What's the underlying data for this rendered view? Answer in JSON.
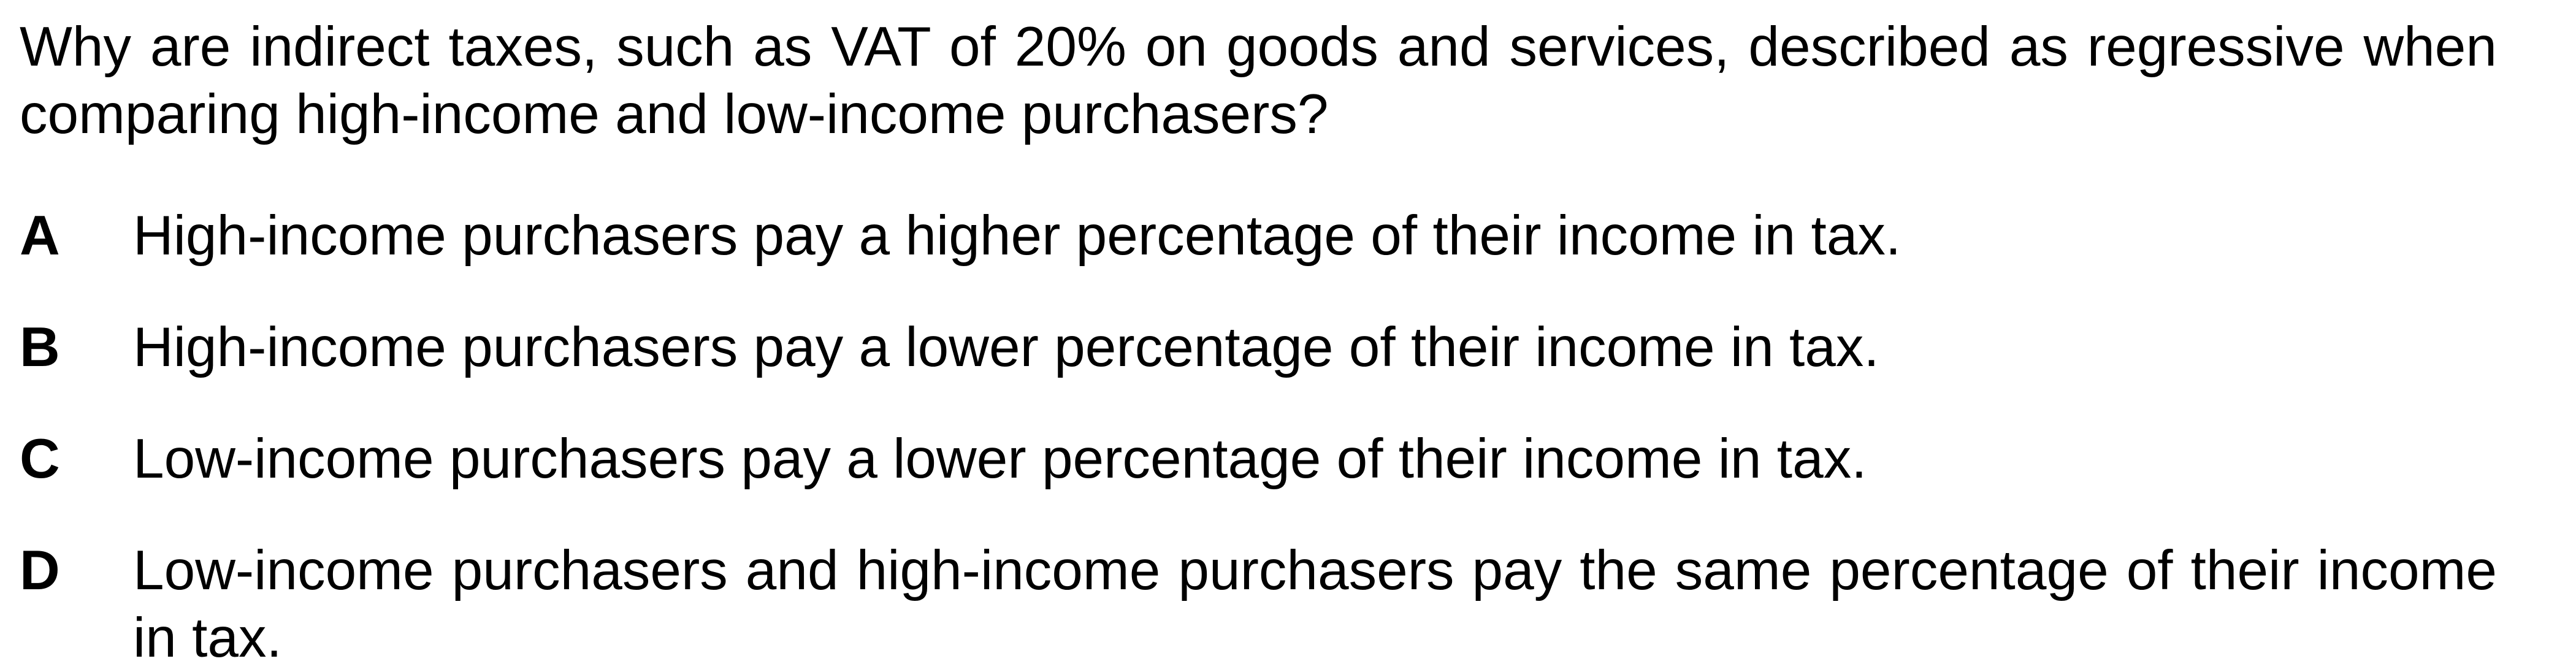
{
  "question": {
    "text": "Why are indirect taxes, such as VAT of 20% on goods and services, described as regressive when comparing high-income and low-income purchasers?"
  },
  "options": [
    {
      "letter": "A",
      "text": "High-income purchasers pay a higher percentage of their income in tax."
    },
    {
      "letter": "B",
      "text": "High-income purchasers pay a lower percentage of their income in tax."
    },
    {
      "letter": "C",
      "text": "Low-income purchasers pay a lower percentage of their income in tax."
    },
    {
      "letter": "D",
      "text": "Low-income purchasers and high-income purchasers pay the same percentage of their income in tax."
    }
  ]
}
